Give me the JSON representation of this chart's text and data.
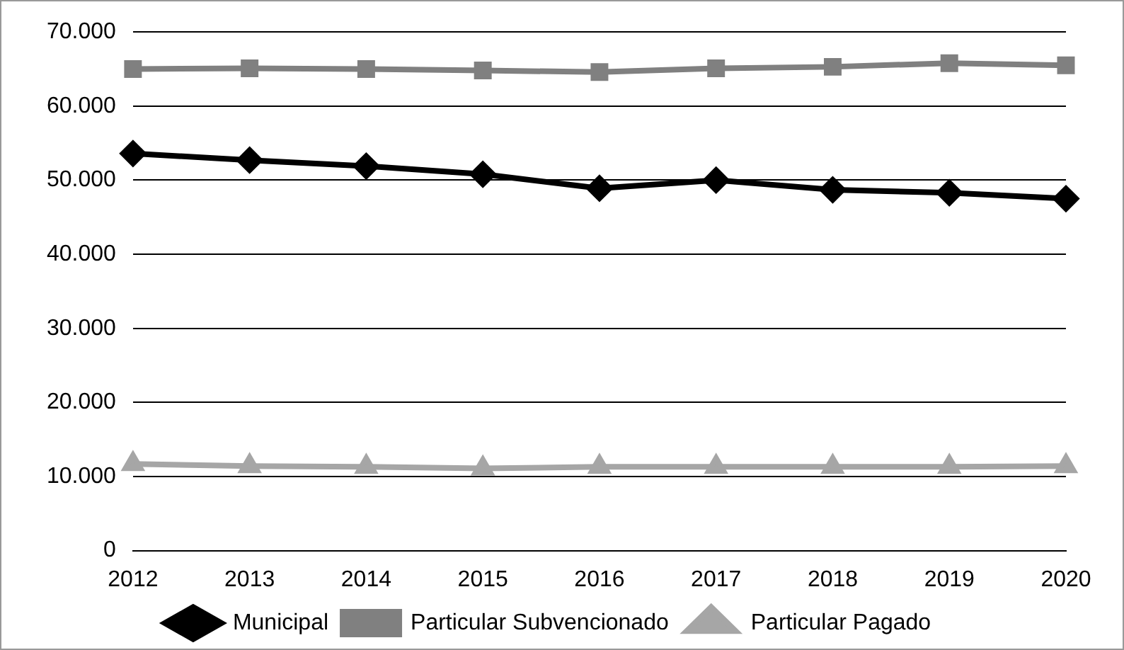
{
  "chart_data": {
    "type": "line",
    "categories": [
      "2012",
      "2013",
      "2014",
      "2015",
      "2016",
      "2017",
      "2018",
      "2019",
      "2020"
    ],
    "series": [
      {
        "name": "Municipal",
        "color": "#000000",
        "marker": "diamond",
        "values": [
          53600,
          52700,
          51900,
          50800,
          48900,
          50000,
          48700,
          48300,
          47500
        ]
      },
      {
        "name": "Particular Subvencionado",
        "color": "#808080",
        "marker": "square",
        "values": [
          65000,
          65100,
          65000,
          64800,
          64600,
          65100,
          65300,
          65800,
          65500
        ]
      },
      {
        "name": "Particular Pagado",
        "color": "#a6a6a6",
        "marker": "triangle",
        "values": [
          11700,
          11400,
          11300,
          11100,
          11300,
          11300,
          11300,
          11300,
          11400
        ]
      }
    ],
    "ylim": [
      0,
      70000
    ],
    "yticks": [
      0,
      {
        "value": 10000,
        "label": "10.000"
      },
      {
        "value": 20000,
        "label": "20.000"
      },
      {
        "value": 30000,
        "label": "30.000"
      },
      {
        "value": 40000,
        "label": "40.000"
      },
      {
        "value": 50000,
        "label": "50.000"
      },
      {
        "value": 60000,
        "label": "60.000"
      },
      {
        "value": 70000,
        "label": "70.000"
      }
    ],
    "grid": "y",
    "legend": "bottom",
    "line_style": "solid"
  }
}
